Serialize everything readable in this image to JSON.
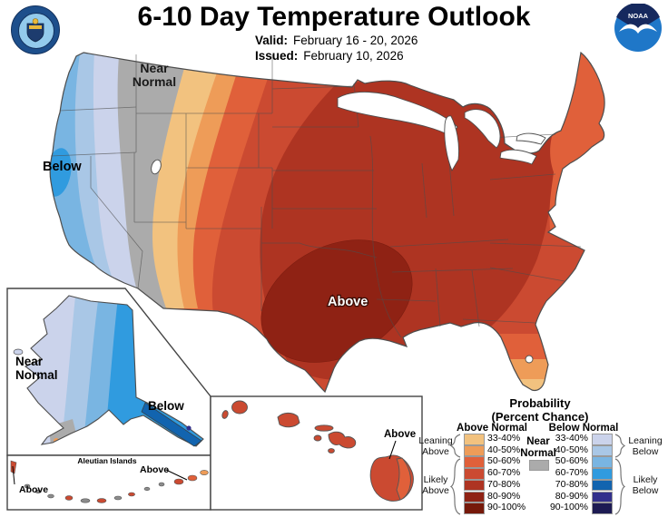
{
  "header": {
    "title": "6-10 Day Temperature Outlook",
    "valid_label": "Valid:",
    "valid_value": "February 16 - 20, 2026",
    "issued_label": "Issued:",
    "issued_value": "February 10, 2026",
    "noaa_logo_text": "NOAA"
  },
  "map_labels": {
    "conus_near_l1": "Near",
    "conus_near_l2": "Normal",
    "conus_below": "Below",
    "conus_above": "Above",
    "alaska_near_l1": "Near",
    "alaska_near_l2": "Normal",
    "alaska_below": "Below",
    "aleutians_title": "Aleutian Islands",
    "aleutians_above_left": "Above",
    "aleutians_above_right": "Above",
    "hawaii_above": "Above"
  },
  "legend": {
    "title_l1": "Probability",
    "title_l2": "(Percent Chance)",
    "above_header": "Above Normal",
    "below_header": "Below Normal",
    "near_l1": "Near",
    "near_l2": "Normal",
    "percents": [
      "33-40%",
      "40-50%",
      "50-60%",
      "60-70%",
      "70-80%",
      "80-90%",
      "90-100%"
    ],
    "leaning_above_l1": "Leaning",
    "leaning_above_l2": "Above",
    "likely_above_l1": "Likely",
    "likely_above_l2": "Above",
    "leaning_below_l1": "Leaning",
    "leaning_below_l2": "Below",
    "likely_below_l1": "Likely",
    "likely_below_l2": "Below"
  },
  "palette": {
    "above": [
      "#F2C27F",
      "#EE9C58",
      "#E0603A",
      "#CB4A31",
      "#AE3422",
      "#8F2214",
      "#76190A"
    ],
    "below": [
      "#CBD3EB",
      "#A9C7E6",
      "#79B5E2",
      "#309BDF",
      "#1264AF",
      "#32308C",
      "#1D1B53"
    ],
    "near_normal": "#ABABAB",
    "water": "#FFFFFF",
    "border": "#4D4D4D",
    "island_gray": "#8C8C8C"
  }
}
